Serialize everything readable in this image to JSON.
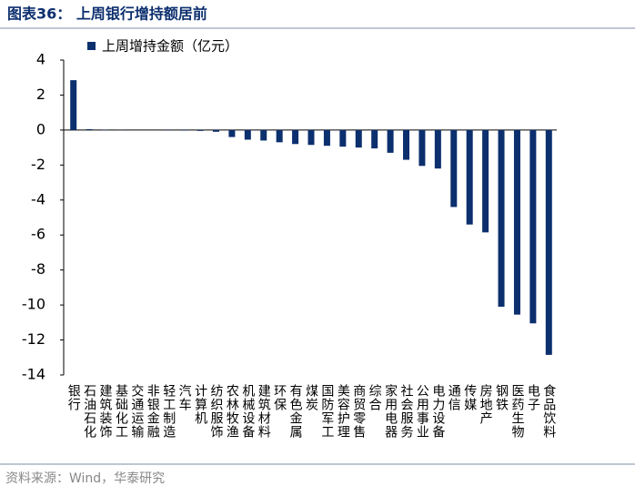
{
  "chart_data": {
    "type": "bar",
    "title": "图表36： 上周银行增持额居前",
    "legend": "上周增持金额（亿元）",
    "source": "资料来源：Wind，华泰研究",
    "color": "#0c2f6e",
    "categories": [
      "银行",
      "石油石化",
      "建筑装饰",
      "基础化工",
      "交通运输",
      "非银金融",
      "轻工制造",
      "汽车",
      "计算机",
      "纺织服饰",
      "农林牧渔",
      "机械设备",
      "建筑材料",
      "环保",
      "有色金属",
      "煤炭",
      "国防军工",
      "美容护理",
      "商贸零售",
      "综合",
      "家用电器",
      "社会服务",
      "公用事业",
      "电力设备",
      "通信",
      "传媒",
      "房地产",
      "钢铁",
      "医药生物",
      "电子",
      "食品饮料"
    ],
    "values": [
      2.85,
      0.05,
      0.02,
      0.01,
      0.0,
      0.0,
      -0.02,
      -0.03,
      -0.05,
      -0.1,
      -0.4,
      -0.55,
      -0.6,
      -0.7,
      -0.8,
      -0.85,
      -0.9,
      -0.95,
      -1.0,
      -1.05,
      -1.3,
      -1.7,
      -2.05,
      -2.2,
      -4.4,
      -5.4,
      -5.85,
      -10.1,
      -10.55,
      -11.05,
      -12.85
    ],
    "ylim": [
      -14,
      4
    ],
    "yticks": [
      -14,
      -12,
      -10,
      -8,
      -6,
      -4,
      -2,
      0,
      2,
      4
    ]
  }
}
